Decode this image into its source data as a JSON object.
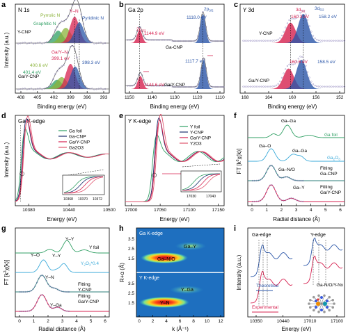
{
  "colors": {
    "red": "#d6204f",
    "blue": "#2a55a8",
    "green": "#2f9f63",
    "olive": "#8bb33a",
    "navy": "#1d2f6f",
    "pink": "#e0566f",
    "teal": "#2b7e7a",
    "cyan": "#39a9d9",
    "gray": "#6b6b6b"
  },
  "chart_data": [
    {
      "panel": "a",
      "type": "line",
      "title": "N 1s",
      "xlabel": "Binding energy (eV)",
      "ylabel": "Intensity (a.u.)",
      "xticks": [
        "408",
        "405",
        "402",
        "399",
        "396",
        "393"
      ],
      "xlim": [
        408.5,
        392.5
      ],
      "traces": [
        {
          "name": "Y-CNP",
          "components": [
            {
              "label": "Graphitic N",
              "center": 401.2
            },
            {
              "label": "Pyrrolic N",
              "center": 399.9
            },
            {
              "label": "Y–N",
              "center": 398.4
            },
            {
              "label": "Pyridinic N",
              "center": 397.6
            }
          ]
        },
        {
          "name": "Ga/Y-CNP",
          "components": [
            {
              "label": "401.4 eV",
              "center": 401.4
            },
            {
              "label": "400.6 eV",
              "center": 400.6
            },
            {
              "label": "Ga/Y–N 399.1 eV",
              "center": 399.1
            },
            {
              "label": "398.3 eV",
              "center": 398.3
            }
          ]
        }
      ]
    },
    {
      "panel": "b",
      "type": "line",
      "title": "Ga 2p",
      "xlabel": "Binding energy (eV)",
      "xticks": [
        "1150",
        "1140",
        "1130",
        "1120",
        "1110"
      ],
      "xlim": [
        1151,
        1109
      ],
      "traces": [
        {
          "name": "Ga-CNP",
          "peaks": [
            {
              "label": "2p1/2",
              "value": "1144.9 eV"
            },
            {
              "label": "2p3/2",
              "value": "1118.0 eV"
            }
          ]
        },
        {
          "name": "Ga/Y-CNP",
          "peaks": [
            {
              "label": "",
              "value": "1144.6 eV"
            },
            {
              "label": "",
              "value": "1117.7 eV"
            }
          ]
        }
      ]
    },
    {
      "panel": "c",
      "type": "line",
      "title": "Y 3d",
      "xlabel": "Binding energy (eV)",
      "xticks": [
        "168",
        "164",
        "160",
        "156",
        "152"
      ],
      "xlim": [
        168.5,
        151.5
      ],
      "traces": [
        {
          "name": "Y-CNP",
          "peaks": [
            {
              "label": "3d3/2",
              "value": "160.3 eV"
            },
            {
              "label": "3d5/2",
              "value": "158.2 eV"
            }
          ]
        },
        {
          "name": "Ga/Y-CNP",
          "peaks": [
            {
              "label": "",
              "value": "160.6 eV"
            },
            {
              "label": "",
              "value": "158.5 eV"
            }
          ]
        }
      ]
    },
    {
      "panel": "d",
      "type": "line",
      "title": "Ga K-edge",
      "xlabel": "Energy (eV)",
      "ylabel": "Intensity (a.u.)",
      "xticks": [
        "10380",
        "10440",
        "10500"
      ],
      "xlim": [
        10360,
        10500
      ],
      "legend": [
        "Ga foil",
        "Ga-CNP",
        "Ga/Y-CNP",
        "Ga2O3"
      ],
      "inset_xticks": [
        "10368",
        "10370",
        "10372"
      ]
    },
    {
      "panel": "e",
      "type": "line",
      "title": "Y K-edge",
      "xlabel": "Energy (eV)",
      "xticks": [
        "17000",
        "17050",
        "17100",
        "17150"
      ],
      "xlim": [
        16990,
        17160
      ],
      "legend": [
        "Y foil",
        "Y-CNP",
        "Ga/Y-CNP",
        "Y2O3"
      ],
      "inset_xticks": [
        "17030",
        "17040"
      ]
    },
    {
      "panel": "f",
      "type": "line",
      "xlabel": "Radial distance (Å)",
      "ylabel": "FT [k²χ(k)]",
      "xticks": [
        "0",
        "1",
        "2",
        "3",
        "4",
        "5",
        "6"
      ],
      "xlim": [
        0,
        6
      ],
      "annotations": [
        "Ga–Ga",
        "Ga foil",
        "Ga–O",
        "Ga–Ga",
        "Ga2O3",
        "Ga–N/O",
        "Fitting",
        "Ga-CNP",
        "Ga–Y",
        "Fitting",
        "Ga/Y-CNP"
      ]
    },
    {
      "panel": "g",
      "type": "line",
      "xlabel": "Radial distance (Å)",
      "ylabel": "FT [k²χ(k)]",
      "xticks": [
        "0",
        "1",
        "2",
        "3",
        "4",
        "5",
        "6"
      ],
      "xlim": [
        0,
        6
      ],
      "annotations": [
        "Y–Y",
        "Y foil",
        "Y–O",
        "Y–Y",
        "Y2O3*0.4",
        "Y–N",
        "Fitting",
        "Y-CNP",
        "Y–Ga",
        "Fitting",
        "Ga/Y-CNP"
      ]
    },
    {
      "panel": "h",
      "type": "heatmap",
      "xlabel": "k (Å⁻¹)",
      "ylabel": "R+α (Å)",
      "xticks": [
        "0",
        "2",
        "4",
        "6",
        "8",
        "10",
        "12"
      ],
      "subplots": [
        {
          "title": "Ga K-edge",
          "yticks": [
            "3.5",
            "2.5",
            "1.5"
          ],
          "labels": [
            "Ga–Y",
            "Ga–N/O"
          ]
        },
        {
          "title": "Y K-edge",
          "yticks": [
            "3.5",
            "2.5",
            "1.5"
          ],
          "labels": [
            "Y–Ga",
            "Y–N"
          ]
        }
      ]
    },
    {
      "panel": "i",
      "type": "line",
      "xlabel": "Energy (eV)",
      "ylabel": "Intensity (a.u.)",
      "xticks": [
        "10350",
        "10440",
        "17010",
        "17100"
      ],
      "subtitles": [
        "Ga-edge",
        "Y-edge"
      ],
      "legend": [
        "Theoretical",
        "Experimental"
      ],
      "model_label": "Ga-N/O/Y-Nx"
    }
  ]
}
